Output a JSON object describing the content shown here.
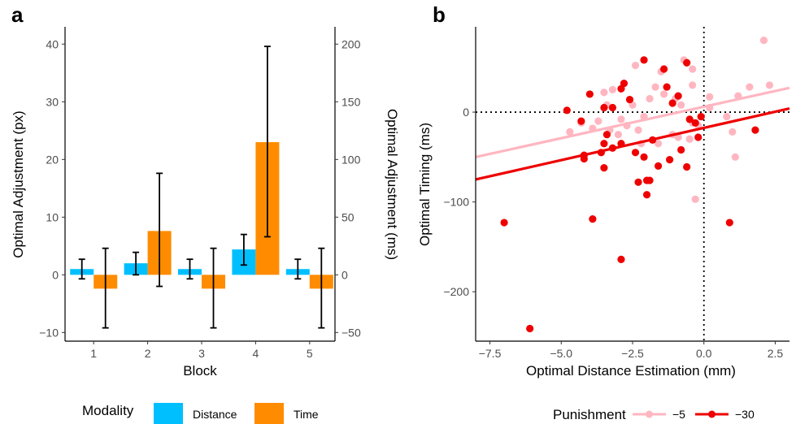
{
  "chart_data": [
    {
      "panel": "a",
      "type": "bar",
      "xlabel": "Block",
      "ylabel": "Optimal Adjustment (px)",
      "ylabel_right": "Optimal Adjustment (ms)",
      "categories": [
        "1",
        "2",
        "3",
        "4",
        "5"
      ],
      "ylim": [
        -11.5,
        43
      ],
      "yticks": [
        -10,
        0,
        10,
        20,
        30,
        40
      ],
      "ylim_right": [
        -57.5,
        215
      ],
      "yticks_right": [
        -50,
        0,
        50,
        100,
        150,
        200
      ],
      "ytick_labels": [
        "−10",
        "0",
        "10",
        "20",
        "30",
        "40"
      ],
      "ytick_labels_right": [
        "−50",
        "0",
        "50",
        "100",
        "150",
        "200"
      ],
      "legend": {
        "title": "Modality",
        "position": "bottom"
      },
      "series": [
        {
          "name": "Distance",
          "color": "#00BFFF",
          "axis": "left",
          "values": [
            1.0,
            2.0,
            1.0,
            4.4,
            1.0
          ],
          "err_low": [
            -0.7,
            0.0,
            -0.7,
            1.7,
            -0.7
          ],
          "err_high": [
            2.7,
            3.9,
            2.7,
            7.0,
            2.7
          ]
        },
        {
          "name": "Time",
          "color": "#FF8C00",
          "axis": "right",
          "values": [
            -12,
            38,
            -12,
            115,
            -12
          ],
          "err_low": [
            -46,
            -10,
            -46,
            33,
            -46
          ],
          "err_high": [
            23,
            88,
            23,
            198,
            23
          ]
        }
      ]
    },
    {
      "panel": "b",
      "type": "scatter",
      "xlabel": "Optimal Distance Estimation (mm)",
      "ylabel": "Optimal Timing (ms)",
      "xlim": [
        -8.0,
        3.0
      ],
      "ylim": [
        -255,
        95
      ],
      "xticks": [
        -7.5,
        -5.0,
        -2.5,
        0.0,
        2.5
      ],
      "xtick_labels": [
        "−7.5",
        "−5.0",
        "−2.5",
        "0.0",
        "2.5"
      ],
      "yticks": [
        -200,
        -100,
        0
      ],
      "ytick_labels": [
        "−200",
        "−100",
        "0"
      ],
      "reference_lines": {
        "x": 0,
        "y": 0,
        "style": "dotted"
      },
      "legend": {
        "title": "Punishment",
        "position": "bottom"
      },
      "series": [
        {
          "name": "−5",
          "color": "#FFB6C1",
          "fit": {
            "x": [
              -8.0,
              3.0
            ],
            "y": [
              -50,
              27
            ]
          },
          "points": [
            [
              2.1,
              80
            ],
            [
              2.3,
              30
            ],
            [
              1.6,
              28
            ],
            [
              1.2,
              18
            ],
            [
              0.8,
              -5
            ],
            [
              1.0,
              -22
            ],
            [
              1.1,
              -50
            ],
            [
              0.2,
              17
            ],
            [
              0.2,
              5
            ],
            [
              -0.1,
              -5
            ],
            [
              -0.2,
              -15
            ],
            [
              -0.4,
              -12
            ],
            [
              -0.4,
              48
            ],
            [
              -0.6,
              55
            ],
            [
              -0.7,
              58
            ],
            [
              -0.4,
              30
            ],
            [
              -0.3,
              -97
            ],
            [
              -0.5,
              -30
            ],
            [
              -0.8,
              8
            ],
            [
              -1.0,
              15
            ],
            [
              -1.1,
              -25
            ],
            [
              -1.4,
              20
            ],
            [
              -1.5,
              45
            ],
            [
              -1.7,
              28
            ],
            [
              -1.9,
              15
            ],
            [
              -2.1,
              -5
            ],
            [
              -2.3,
              -20
            ],
            [
              -2.5,
              8
            ],
            [
              -2.7,
              -15
            ],
            [
              -2.9,
              -8
            ],
            [
              -3.0,
              -25
            ],
            [
              -3.2,
              25
            ],
            [
              -3.3,
              -20
            ],
            [
              -3.4,
              8
            ],
            [
              -3.5,
              22
            ],
            [
              -3.7,
              -10
            ],
            [
              -3.9,
              -18
            ],
            [
              -4.3,
              -12
            ],
            [
              -4.7,
              -22
            ],
            [
              -2.2,
              -35
            ],
            [
              -1.6,
              -35
            ],
            [
              -2.4,
              52
            ],
            [
              -0.9,
              -28
            ]
          ]
        },
        {
          "name": "−30",
          "color": "#EE0000",
          "fit": {
            "x": [
              -8.0,
              3.0
            ],
            "y": [
              -75,
              4
            ]
          },
          "points": [
            [
              -6.1,
              -241
            ],
            [
              -7.0,
              -123
            ],
            [
              -3.9,
              -119
            ],
            [
              -2.9,
              -164
            ],
            [
              0.9,
              -123
            ],
            [
              -4.2,
              -52
            ],
            [
              -4.2,
              -48
            ],
            [
              -3.5,
              -62
            ],
            [
              -3.6,
              -45
            ],
            [
              -3.5,
              -35
            ],
            [
              -3.2,
              -40
            ],
            [
              -3.4,
              -25
            ],
            [
              -2.9,
              -35
            ],
            [
              -2.3,
              -78
            ],
            [
              -2.0,
              -92
            ],
            [
              -2.0,
              -76
            ],
            [
              -1.9,
              -76
            ],
            [
              -2.1,
              -50
            ],
            [
              -1.8,
              -31
            ],
            [
              -1.6,
              -60
            ],
            [
              -0.6,
              -61
            ],
            [
              -1.2,
              -53
            ],
            [
              -0.8,
              -42
            ],
            [
              -0.5,
              -8
            ],
            [
              -0.3,
              -12
            ],
            [
              -0.2,
              -28
            ],
            [
              -0.1,
              -5
            ],
            [
              -1.1,
              10
            ],
            [
              -0.9,
              18
            ],
            [
              -1.4,
              48
            ],
            [
              -1.3,
              28
            ],
            [
              -2.1,
              58
            ],
            [
              -2.8,
              32
            ],
            [
              -2.6,
              14
            ],
            [
              -2.9,
              26
            ],
            [
              -3.2,
              5
            ],
            [
              -3.5,
              5
            ],
            [
              -4.0,
              20
            ],
            [
              -4.3,
              -10
            ],
            [
              -4.8,
              2
            ],
            [
              -2.4,
              -45
            ],
            [
              -0.6,
              55
            ],
            [
              1.8,
              -20
            ]
          ]
        }
      ]
    }
  ],
  "panel_labels": [
    "a",
    "b"
  ]
}
